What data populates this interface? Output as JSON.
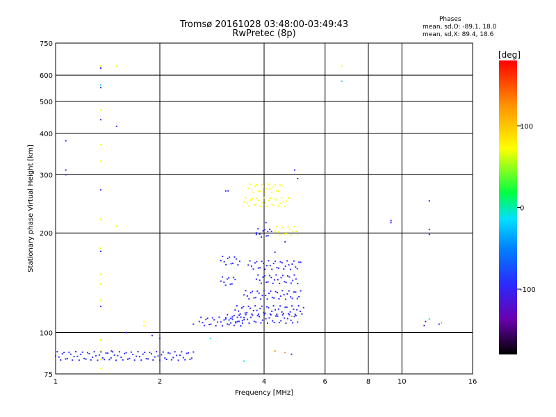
{
  "chart_data": {
    "type": "scatter",
    "title": "Tromsø 20161028 03:48:00-03:49:43",
    "subtitle": "RwPretec (8p)",
    "xlabel": "Frequency [MHz]",
    "ylabel": "Stationary phase Virtual Height [km]",
    "x_scale": "log",
    "y_scale": "log",
    "xlim": [
      1,
      16
    ],
    "ylim": [
      75,
      750
    ],
    "x_ticks": [
      "1",
      "2",
      "4",
      "6",
      "8",
      "10",
      "16"
    ],
    "y_ticks": [
      "75",
      "100",
      "200",
      "300",
      "400",
      "500",
      "600",
      "750"
    ],
    "grid": true,
    "phases": {
      "header": "Phases",
      "o_mode": "mean, sd,O: -89.1, 18.0",
      "x_mode": "mean, sd,X: 89.4, 18.6"
    },
    "colorbar": {
      "label": "[deg]",
      "range": [
        -180,
        180
      ],
      "ticks": [
        "100",
        "0",
        "-100"
      ],
      "colormap": [
        "#000000",
        "#6a00b0",
        "#2a2aff",
        "#0080ff",
        "#00e0ff",
        "#00ff40",
        "#ffff00",
        "#ff9000",
        "#ff0000"
      ]
    },
    "traces": [
      {
        "name": "",
        "points": [
          [
            1.35,
            640
          ],
          [
            1.35,
            560
          ],
          [
            1.35,
            470
          ],
          [
            1.35,
            370
          ],
          [
            1.35,
            330
          ],
          [
            1.35,
            220
          ],
          [
            1.35,
            180
          ],
          [
            1.35,
            150
          ],
          [
            1.35,
            140
          ],
          [
            1.35,
            125
          ],
          [
            1.35,
            95
          ],
          [
            1.35,
            88
          ],
          [
            1.35,
            83
          ],
          [
            1.35,
            78
          ],
          [
            1.5,
            640
          ],
          [
            1.5,
            210
          ],
          [
            1.8,
            108
          ],
          [
            1.8,
            105
          ],
          [
            6.7,
            640
          ]
        ],
        "phase": 100
      },
      {
        "name": "",
        "points": [
          [
            1.35,
            630
          ],
          [
            1.35,
            550
          ],
          [
            1.35,
            270
          ],
          [
            1.35,
            120
          ],
          [
            1.45,
            88
          ],
          [
            1.5,
            420
          ],
          [
            1.6,
            100
          ],
          [
            1.9,
            98
          ],
          [
            2.0,
            96
          ],
          [
            1.07,
            380
          ],
          [
            1.07,
            310
          ],
          [
            1.07,
            300
          ],
          [
            3.1,
            268
          ],
          [
            3.15,
            268
          ],
          [
            4.05,
            215
          ],
          [
            4.1,
            202
          ],
          [
            3.8,
            198
          ],
          [
            4.6,
            188
          ],
          [
            4.3,
            175
          ],
          [
            4.9,
            310
          ],
          [
            5.0,
            292
          ],
          [
            9.3,
            218
          ],
          [
            9.3,
            215
          ],
          [
            12.0,
            250
          ],
          [
            12.0,
            205
          ],
          [
            12.0,
            198
          ]
        ],
        "phase": -100
      },
      {
        "name": "",
        "points": [
          [
            1.35,
            440
          ],
          [
            1.35,
            176
          ],
          [
            2.5,
            106
          ],
          [
            4.8,
            86
          ],
          [
            12.8,
            106
          ],
          [
            11.6,
            105
          ],
          [
            11.7,
            108
          ]
        ],
        "phase": -70
      },
      {
        "name": "",
        "points": [
          [
            6.7,
            575
          ],
          [
            1.35,
            560
          ],
          [
            12.0,
            110
          ],
          [
            3.5,
            82
          ],
          [
            2.8,
            96
          ]
        ],
        "phase": -20
      },
      {
        "name": "",
        "points": [
          [
            4.6,
            87
          ],
          [
            4.3,
            88
          ],
          [
            13.0,
            107
          ],
          [
            4.8,
            112
          ]
        ],
        "phase": 150
      }
    ],
    "bands": [
      {
        "phase": 100,
        "x_range": [
          3.6,
          4.5
        ],
        "height": 273
      },
      {
        "phase": 100,
        "x_range": [
          3.5,
          4.7
        ],
        "height": 248
      },
      {
        "phase": 100,
        "x_range": [
          4.3,
          5.0
        ],
        "height": 203
      },
      {
        "phase": -110,
        "x_range": [
          3.8,
          4.2
        ],
        "height": 200
      },
      {
        "phase": -110,
        "x_range": [
          3.6,
          5.1
        ],
        "height": 160
      },
      {
        "phase": -110,
        "x_range": [
          3.8,
          5.0
        ],
        "height": 145
      },
      {
        "phase": -110,
        "x_range": [
          3.5,
          5.1
        ],
        "height": 130
      },
      {
        "phase": -110,
        "x_range": [
          3.3,
          5.2
        ],
        "height": 117
      },
      {
        "phase": -110,
        "x_range": [
          3.1,
          5.0
        ],
        "height": 110
      },
      {
        "phase": -110,
        "x_range": [
          2.6,
          3.5
        ],
        "height": 108
      },
      {
        "phase": -110,
        "x_range": [
          3.0,
          3.4
        ],
        "height": 165
      },
      {
        "phase": -110,
        "x_range": [
          3.0,
          3.3
        ],
        "height": 143
      },
      {
        "phase": -110,
        "x_range": [
          1.0,
          2.5
        ],
        "height": 85
      }
    ]
  }
}
